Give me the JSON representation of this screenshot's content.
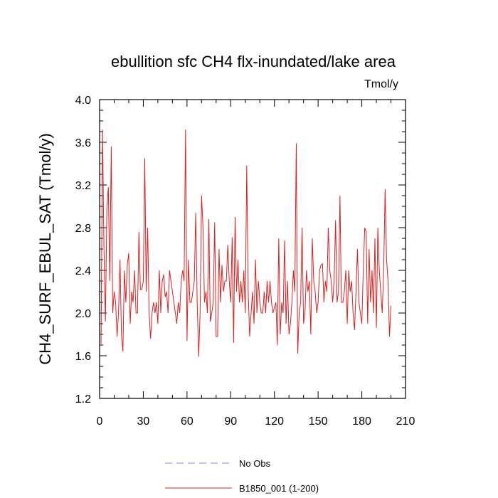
{
  "chart_data": {
    "type": "line",
    "title": "ebullition sfc CH4 flx-inundated/lake area",
    "units": "Tmol/y",
    "xlabel": "",
    "ylabel": "CH4_SURF_EBUL_SAT  (Tmol/y)",
    "xlim": [
      0,
      210
    ],
    "ylim": [
      1.2,
      4.0
    ],
    "xticks": [
      0,
      30,
      60,
      90,
      120,
      150,
      180,
      210
    ],
    "yticks": [
      1.2,
      1.6,
      2.0,
      2.4,
      2.8,
      3.2,
      3.6,
      4.0
    ],
    "xtick_labels": [
      "0",
      "30",
      "60",
      "90",
      "120",
      "150",
      "180",
      "210"
    ],
    "ytick_labels": [
      "1.2",
      "1.6",
      "2.0",
      "2.4",
      "2.8",
      "3.2",
      "3.6",
      "4.0"
    ],
    "legend": [
      {
        "label": "No Obs",
        "color": "#8080ff",
        "style": "dashed"
      },
      {
        "label": "B1850_001 (1-200)",
        "color": "#e02020",
        "style": "solid"
      }
    ],
    "series": [
      {
        "name": "B1850_001 (1-200)",
        "color": "#e02020",
        "x_start": 1,
        "x_step": 1,
        "values": [
          1.71,
          3.72,
          2.6,
          1.92,
          3.0,
          3.18,
          2.3,
          3.56,
          2.0,
          2.2,
          2.1,
          1.78,
          2.0,
          2.5,
          1.8,
          1.64,
          2.4,
          2.1,
          2.45,
          2.56,
          1.9,
          2.2,
          2.1,
          2.4,
          2.0,
          2.0,
          2.76,
          2.22,
          2.22,
          2.3,
          3.45,
          2.2,
          2.8,
          2.0,
          1.76,
          2.0,
          2.1,
          2.0,
          2.1,
          1.9,
          2.4,
          2.0,
          2.3,
          2.36,
          2.15,
          2.2,
          2.0,
          2.4,
          2.3,
          2.2,
          2.1,
          2.0,
          1.9,
          2.1,
          2.0,
          2.3,
          2.4,
          2.3,
          3.72,
          1.74,
          2.5,
          2.1,
          2.1,
          2.2,
          2.3,
          2.94,
          2.1,
          1.59,
          2.0,
          3.1,
          2.8,
          2.1,
          2.2,
          2.0,
          2.88,
          1.92,
          2.0,
          2.1,
          2.85,
          1.78,
          1.78,
          2.6,
          2.1,
          2.45,
          2.2,
          2.3,
          2.3,
          2.64,
          2.3,
          2.1,
          2.71,
          1.72,
          2.9,
          2.2,
          2.5,
          2.1,
          2.3,
          2.1,
          2.4,
          2.0,
          3.38,
          2.2,
          1.78,
          2.0,
          2.2,
          1.9,
          2.5,
          2.0,
          2.3,
          2.1,
          2.0,
          2.0,
          2.2,
          2.0,
          2.3,
          2.1,
          2.3,
          2.1,
          2.0,
          2.05,
          2.1,
          1.7,
          2.7,
          1.8,
          2.1,
          2.0,
          2.68,
          1.9,
          2.3,
          1.8,
          1.9,
          2.1,
          2.4,
          2.2,
          3.59,
          1.62,
          2.0,
          2.1,
          2.8,
          1.9,
          2.0,
          2.4,
          2.2,
          2.3,
          1.8,
          2.7,
          2.3,
          2.2,
          2.0,
          2.1,
          2.4,
          2.45,
          2.46,
          2.1,
          2.3,
          2.2,
          2.8,
          2.4,
          2.3,
          2.1,
          2.3,
          2.87,
          2.1,
          2.2,
          3.1,
          2.1,
          2.1,
          2.2,
          2.4,
          1.9,
          2.4,
          2.2,
          2.3,
          2.0,
          1.84,
          2.2,
          2.6,
          2.1,
          2.0,
          1.9,
          2.4,
          2.8,
          2.76,
          1.9,
          2.6,
          2.1,
          2.4,
          2.0,
          2.7,
          1.86,
          2.8,
          2.4,
          2.2,
          2.0,
          2.4,
          3.16,
          2.5,
          2.3,
          1.78,
          2.07
        ]
      }
    ]
  }
}
